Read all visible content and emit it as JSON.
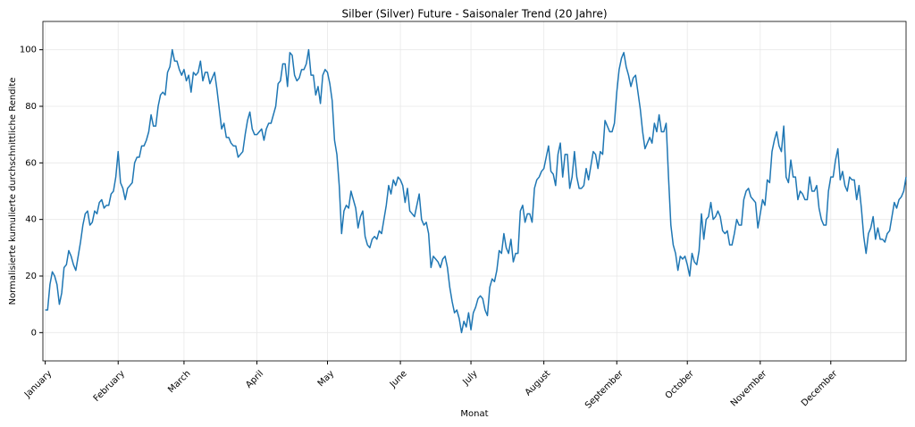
{
  "chart_data": {
    "type": "line",
    "title": "Silber (Silver) Future - Saisonaler Trend (20 Jahre)",
    "xlabel": "Monat",
    "ylabel": "Normalisierte kumulierte durchschnittliche Rendite",
    "color": "#1f77b4",
    "grid": true,
    "xlim": [
      -1,
      366
    ],
    "ylim": [
      -10,
      110
    ],
    "yticks": [
      0,
      20,
      40,
      60,
      80,
      100
    ],
    "xticks": [
      {
        "value": 0,
        "label": "January"
      },
      {
        "value": 31,
        "label": "February"
      },
      {
        "value": 59,
        "label": "March"
      },
      {
        "value": 90,
        "label": "April"
      },
      {
        "value": 120,
        "label": "May"
      },
      {
        "value": 151,
        "label": "June"
      },
      {
        "value": 181,
        "label": "July"
      },
      {
        "value": 212,
        "label": "August"
      },
      {
        "value": 243,
        "label": "September"
      },
      {
        "value": 273,
        "label": "October"
      },
      {
        "value": 304,
        "label": "November"
      },
      {
        "value": 334,
        "label": "December"
      }
    ],
    "x": [
      0,
      1,
      2,
      3,
      4,
      5,
      6,
      7,
      8,
      9,
      10,
      11,
      12,
      13,
      14,
      15,
      16,
      17,
      18,
      19,
      20,
      21,
      22,
      23,
      24,
      25,
      26,
      27,
      28,
      29,
      30,
      31,
      32,
      33,
      34,
      35,
      36,
      37,
      38,
      39,
      40,
      41,
      42,
      43,
      44,
      45,
      46,
      47,
      48,
      49,
      50,
      51,
      52,
      53,
      54,
      55,
      56,
      57,
      58,
      59,
      60,
      61,
      62,
      63,
      64,
      65,
      66,
      67,
      68,
      69,
      70,
      71,
      72,
      73,
      74,
      75,
      76,
      77,
      78,
      79,
      80,
      81,
      82,
      83,
      84,
      85,
      86,
      87,
      88,
      89,
      90,
      91,
      92,
      93,
      94,
      95,
      96,
      97,
      98,
      99,
      100,
      101,
      102,
      103,
      104,
      105,
      106,
      107,
      108,
      109,
      110,
      111,
      112,
      113,
      114,
      115,
      116,
      117,
      118,
      119,
      120,
      121,
      122,
      123,
      124,
      125,
      126,
      127,
      128,
      129,
      130,
      131,
      132,
      133,
      134,
      135,
      136,
      137,
      138,
      139,
      140,
      141,
      142,
      143,
      144,
      145,
      146,
      147,
      148,
      149,
      150,
      151,
      152,
      153,
      154,
      155,
      156,
      157,
      158,
      159,
      160,
      161,
      162,
      163,
      164,
      165,
      166,
      167,
      168,
      169,
      170,
      171,
      172,
      173,
      174,
      175,
      176,
      177,
      178,
      179,
      180,
      181,
      182,
      183,
      184,
      185,
      186,
      187,
      188,
      189,
      190,
      191,
      192,
      193,
      194,
      195,
      196,
      197,
      198,
      199,
      200,
      201,
      202,
      203,
      204,
      205,
      206,
      207,
      208,
      209,
      210,
      211,
      212,
      213,
      214,
      215,
      216,
      217,
      218,
      219,
      220,
      221,
      222,
      223,
      224,
      225,
      226,
      227,
      228,
      229,
      230,
      231,
      232,
      233,
      234,
      235,
      236,
      237,
      238,
      239,
      240,
      241,
      242,
      243,
      244,
      245,
      246,
      247,
      248,
      249,
      250,
      251,
      252,
      253,
      254,
      255,
      256,
      257,
      258,
      259,
      260,
      261,
      262,
      263,
      264,
      265,
      266,
      267,
      268,
      269,
      270,
      271,
      272,
      273,
      274,
      275,
      276,
      277,
      278,
      279,
      280,
      281,
      282,
      283,
      284,
      285,
      286,
      287,
      288,
      289,
      290,
      291,
      292,
      293,
      294,
      295,
      296,
      297,
      298,
      299,
      300,
      301,
      302,
      303,
      304,
      305,
      306,
      307,
      308,
      309,
      310,
      311,
      312,
      313,
      314,
      315,
      316,
      317,
      318,
      319,
      320,
      321,
      322,
      323,
      324,
      325,
      326,
      327,
      328,
      329,
      330,
      331,
      332,
      333,
      334,
      335,
      336,
      337,
      338,
      339,
      340,
      341,
      342,
      343,
      344,
      345,
      346,
      347,
      348,
      349,
      350,
      351,
      352,
      353,
      354,
      355,
      356,
      357,
      358,
      359,
      360,
      361,
      362,
      363,
      364,
      365,
      366
    ],
    "values": [
      8,
      8,
      17,
      21.5,
      20,
      17,
      10,
      14,
      23,
      24,
      29,
      27,
      24,
      22,
      27,
      32,
      38,
      42,
      43,
      38,
      39,
      43,
      42,
      46,
      47,
      44,
      45,
      45,
      49,
      50,
      55,
      64,
      53,
      51,
      47,
      51,
      52,
      53,
      60,
      62,
      62,
      66,
      66,
      68,
      71,
      77,
      73,
      73,
      80,
      84,
      85,
      84,
      92,
      94,
      100,
      96,
      96,
      93,
      91,
      93,
      89,
      91,
      85,
      92,
      91,
      92,
      96,
      89,
      92,
      92,
      88,
      90,
      92,
      86,
      79,
      72,
      74,
      69,
      69,
      67,
      66,
      66,
      62,
      63,
      64,
      70,
      75,
      78,
      72,
      70,
      70,
      71,
      72,
      68,
      72,
      74,
      74,
      77,
      80,
      88,
      89,
      95,
      95,
      87,
      99,
      98,
      91,
      89,
      90,
      93,
      93,
      95,
      100,
      91,
      91,
      84,
      87,
      81,
      91,
      93,
      92,
      88,
      82,
      68,
      63,
      52,
      35,
      43,
      45,
      44,
      50,
      47,
      44,
      37,
      41,
      43,
      34,
      31,
      30,
      33,
      34,
      33,
      36,
      35,
      40,
      45,
      52,
      49,
      54,
      52,
      55,
      54,
      52,
      46,
      51,
      43,
      42,
      41,
      45,
      49,
      40,
      38,
      39,
      35,
      23,
      27,
      26,
      25,
      23,
      26,
      27,
      23,
      16,
      11,
      7,
      8,
      5,
      0,
      4,
      2,
      7,
      1,
      7,
      9,
      12,
      13,
      12,
      8,
      6,
      16,
      19,
      18,
      22,
      29,
      28,
      35,
      30,
      28,
      33,
      25,
      28,
      28,
      43,
      45,
      39,
      42,
      42,
      39,
      51,
      54,
      55,
      57,
      58,
      62,
      66,
      57,
      56,
      52,
      63,
      67,
      55,
      63,
      63,
      51,
      55,
      64,
      55,
      51,
      51,
      52,
      58,
      54,
      59,
      64,
      63,
      58,
      64,
      63,
      75,
      73,
      71,
      71,
      74,
      85,
      93,
      97,
      99,
      94,
      91,
      87,
      90,
      91,
      85,
      79,
      71,
      65,
      67,
      69,
      67,
      74,
      71,
      77,
      71,
      71,
      74,
      55,
      38,
      31,
      28,
      22,
      27,
      26,
      27,
      24,
      20,
      28,
      25,
      24,
      29,
      42,
      33,
      40,
      41,
      46,
      40,
      41,
      43,
      41,
      36,
      35,
      36,
      31,
      31,
      35,
      40,
      38,
      38,
      47,
      50,
      51,
      48,
      47,
      46,
      37,
      42,
      47,
      45,
      54,
      53,
      64,
      68,
      71,
      66,
      64,
      73,
      55,
      53,
      61,
      55,
      55,
      47,
      50,
      49,
      47,
      47,
      55,
      50,
      50,
      52,
      44,
      40,
      38,
      38,
      50,
      55,
      55,
      61,
      65,
      54,
      57,
      52,
      50,
      55,
      54,
      54,
      47,
      52,
      44,
      34,
      28,
      35,
      37,
      41,
      33,
      37,
      33,
      33,
      32,
      35,
      36,
      41,
      46,
      44,
      47,
      48,
      50,
      55
    ]
  }
}
